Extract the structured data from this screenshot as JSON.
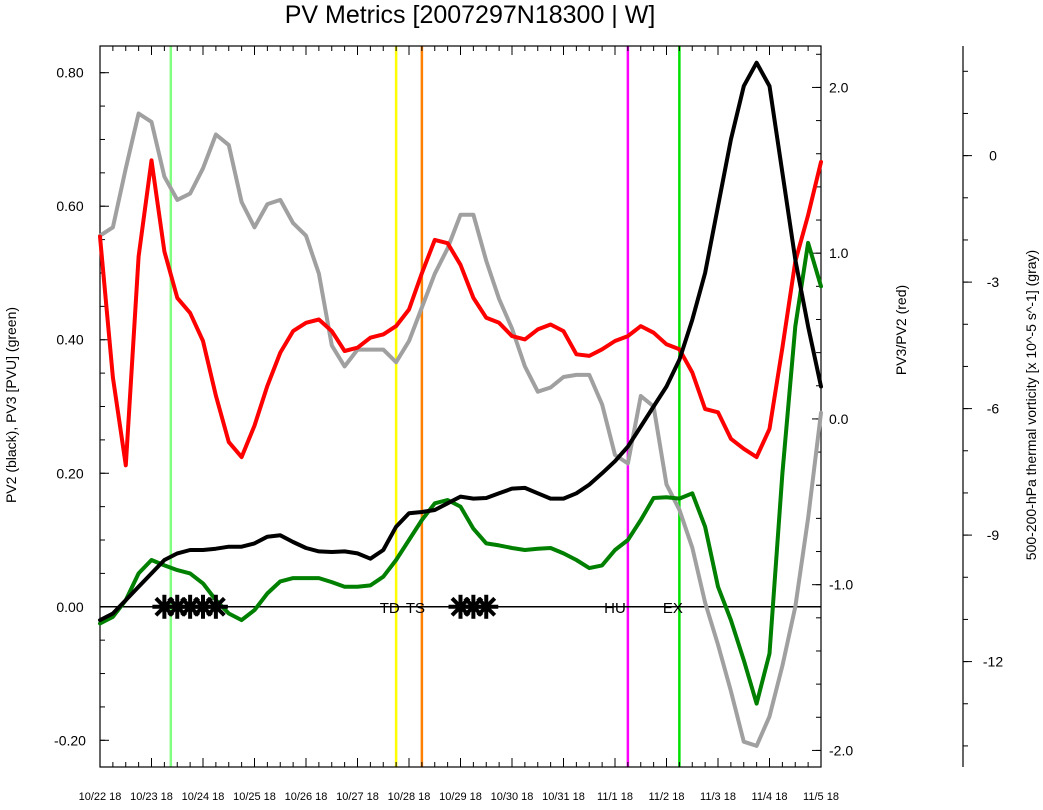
{
  "chart_data": {
    "type": "line",
    "title": "PV Metrics [2007297N18300 | W]",
    "y_left_label": "PV2 (black), PV3 [PVU] (green)",
    "y_right_label": "PV3/PV2 (red)",
    "y_far_right_label": "500-200-hPa thermal vorticity [x 10^-5 s^-1] (gray)",
    "x_start": "10/22 18",
    "x_step_hours": 6,
    "x_tick_labels": [
      "10/22 18",
      "10/23 18",
      "10/24 18",
      "10/25 18",
      "10/26 18",
      "10/27 18",
      "10/28 18",
      "10/29 18",
      "10/30 18",
      "10/31 18",
      "11/1 18",
      "11/2 18",
      "11/3 18",
      "11/4 18",
      "11/5 18"
    ],
    "left_axis": {
      "ylim": [
        -0.24,
        0.84
      ],
      "ticks": [
        0.8,
        0.6,
        0.4,
        0.2,
        0.0,
        -0.2
      ],
      "tick_labels": [
        "0.80",
        "0.60",
        "0.40",
        "0.20",
        "0.00",
        "-0.20"
      ]
    },
    "right_axis": {
      "ylim": [
        -2.1,
        2.25
      ],
      "ticks": [
        2.0,
        1.0,
        0.0,
        -1.0,
        -2.0
      ],
      "tick_labels": [
        "2.0",
        "1.0",
        "0.0",
        "-1.0",
        "-2.0"
      ]
    },
    "far_right_axis": {
      "ylim": [
        -14.5,
        2.6
      ],
      "ticks": [
        0,
        -3,
        -6,
        -9,
        -12
      ],
      "tick_labels": [
        "0",
        "-3",
        "-6",
        "-9",
        "-12"
      ]
    },
    "series": [
      {
        "name": "PV2",
        "color": "#000000",
        "axis": "left",
        "values": [
          -0.02,
          -0.01,
          0.01,
          0.03,
          0.05,
          0.07,
          0.08,
          0.085,
          0.085,
          0.087,
          0.09,
          0.09,
          0.095,
          0.105,
          0.107,
          0.097,
          0.088,
          0.083,
          0.082,
          0.083,
          0.08,
          0.072,
          0.085,
          0.12,
          0.14,
          0.142,
          0.145,
          0.155,
          0.165,
          0.162,
          0.163,
          0.17,
          0.177,
          0.178,
          0.17,
          0.162,
          0.162,
          0.17,
          0.183,
          0.2,
          0.218,
          0.24,
          0.27,
          0.3,
          0.33,
          0.37,
          0.43,
          0.5,
          0.6,
          0.7,
          0.78,
          0.815,
          0.78,
          0.65,
          0.52,
          0.42,
          0.33
        ]
      },
      {
        "name": "PV3",
        "color": "#008000",
        "axis": "left",
        "values": [
          -0.025,
          -0.015,
          0.01,
          0.05,
          0.07,
          0.062,
          0.055,
          0.05,
          0.035,
          0.01,
          -0.01,
          -0.02,
          -0.005,
          0.02,
          0.038,
          0.043,
          0.043,
          0.043,
          0.037,
          0.03,
          0.03,
          0.032,
          0.045,
          0.07,
          0.1,
          0.13,
          0.155,
          0.16,
          0.15,
          0.117,
          0.095,
          0.092,
          0.088,
          0.085,
          0.087,
          0.088,
          0.08,
          0.07,
          0.058,
          0.062,
          0.085,
          0.1,
          0.13,
          0.163,
          0.164,
          0.162,
          0.17,
          0.12,
          0.03,
          -0.02,
          -0.08,
          -0.145,
          -0.07,
          0.2,
          0.42,
          0.545,
          0.48
        ]
      },
      {
        "name": "PV3/PV2",
        "color": "#ff0000",
        "axis": "right",
        "values": [
          1.1,
          0.25,
          -0.28,
          0.98,
          1.56,
          1.01,
          0.73,
          0.64,
          0.47,
          0.14,
          -0.14,
          -0.23,
          -0.04,
          0.2,
          0.4,
          0.53,
          0.58,
          0.6,
          0.53,
          0.41,
          0.43,
          0.49,
          0.51,
          0.56,
          0.66,
          0.88,
          1.08,
          1.06,
          0.93,
          0.73,
          0.61,
          0.58,
          0.5,
          0.48,
          0.54,
          0.57,
          0.53,
          0.39,
          0.38,
          0.42,
          0.47,
          0.5,
          0.56,
          0.52,
          0.45,
          0.42,
          0.28,
          0.06,
          0.04,
          -0.12,
          -0.18,
          -0.23,
          -0.06,
          0.43,
          0.95,
          1.23,
          1.55
        ]
      },
      {
        "name": "thermal vorticity",
        "color": "#a0a0a0",
        "axis": "far_right",
        "values": [
          -1.9,
          -1.7,
          -0.3,
          1.0,
          0.8,
          -0.5,
          -1.05,
          -0.9,
          -0.3,
          0.5,
          0.25,
          -1.1,
          -1.7,
          -1.15,
          -1.05,
          -1.6,
          -1.9,
          -2.8,
          -4.5,
          -5.0,
          -4.6,
          -4.6,
          -4.6,
          -4.9,
          -4.4,
          -3.6,
          -2.8,
          -2.2,
          -1.4,
          -1.4,
          -2.5,
          -3.4,
          -4.1,
          -5.0,
          -5.6,
          -5.5,
          -5.25,
          -5.2,
          -5.2,
          -5.9,
          -7.1,
          -7.3,
          -5.7,
          -5.95,
          -7.8,
          -8.4,
          -9.3,
          -10.6,
          -11.6,
          -12.7,
          -13.9,
          -14.0,
          -13.3,
          -12.1,
          -10.7,
          -8.6,
          -6.1
        ]
      }
    ],
    "vertical_lines": [
      {
        "index": 5.5,
        "color": "#80ff80"
      },
      {
        "index": 23.0,
        "color": "#ffff00"
      },
      {
        "index": 25.0,
        "color": "#ff8000"
      },
      {
        "index": 41.0,
        "color": "#ff00ff"
      },
      {
        "index": 45.0,
        "color": "#00e000"
      }
    ],
    "stage_labels": [
      {
        "text": "TD",
        "index": 22.5
      },
      {
        "text": "TS",
        "index": 24.5
      },
      {
        "text": "HU",
        "index": 40.0
      },
      {
        "text": "EX",
        "index": 44.5
      }
    ],
    "star_markers": [
      5,
      6,
      7,
      8,
      9,
      28,
      29,
      30
    ]
  }
}
